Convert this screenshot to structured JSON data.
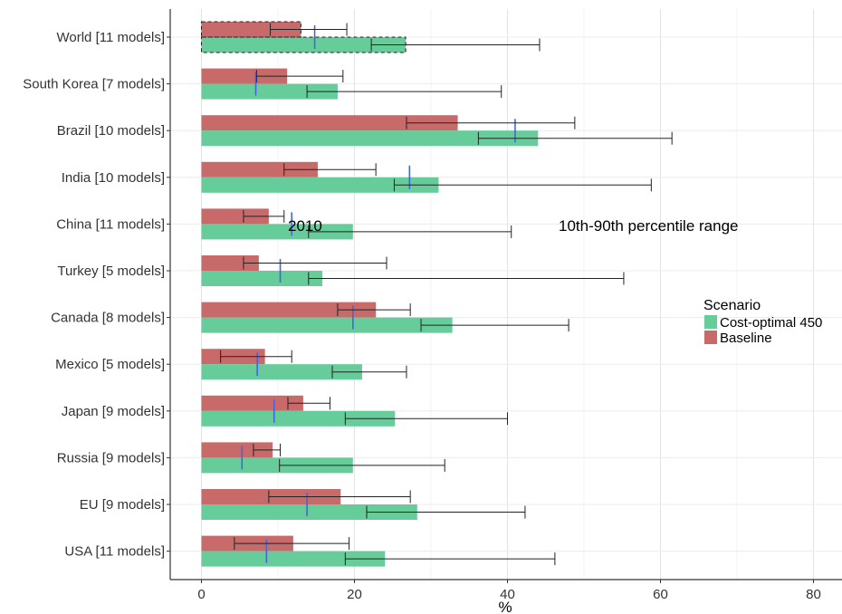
{
  "chart_data": {
    "type": "bar",
    "orientation": "horizontal",
    "categories": [
      "World [11 models]",
      "South Korea [7 models]",
      "Brazil [10 models]",
      "India [10 models]",
      "China [11 models]",
      "Turkey [5 models]",
      "Canada [8 models]",
      "Mexico [5 models]",
      "Japan [9 models]",
      "Russia [9 models]",
      "EU [9 models]",
      "USA [11 models]"
    ],
    "series": [
      {
        "name": "Baseline",
        "color": "#c96a6a",
        "values": [
          13,
          11.2,
          33.5,
          15.2,
          8.8,
          7.5,
          22.8,
          8.3,
          13.3,
          9.3,
          18.2,
          12
        ],
        "err_low": [
          9,
          7.2,
          26.8,
          10.8,
          5.5,
          5.5,
          17.8,
          2.5,
          11.3,
          6.8,
          8.8,
          4.3
        ],
        "err_high": [
          19,
          18.5,
          48.8,
          22.8,
          10.8,
          24.2,
          27.3,
          11.8,
          16.8,
          10.3,
          27.3,
          19.3
        ]
      },
      {
        "name": "Cost-optimal 450",
        "color": "#66cc99",
        "values": [
          26.7,
          17.8,
          44,
          31,
          19.8,
          15.8,
          32.8,
          21,
          25.3,
          19.8,
          28.2,
          24
        ],
        "err_low": [
          22.2,
          13.8,
          36.2,
          25.2,
          14,
          14,
          28.7,
          17.1,
          18.8,
          10.2,
          21.6,
          18.8
        ],
        "err_high": [
          44.2,
          39.2,
          61.5,
          58.8,
          40.5,
          55.2,
          48,
          26.8,
          40,
          31.8,
          42.3,
          46.2
        ]
      }
    ],
    "reference_2010": [
      14.8,
      7.1,
      41,
      27.2,
      11.8,
      10.3,
      19.8,
      7.3,
      9.5,
      5.3,
      13.8,
      8.5
    ],
    "reference_color": "#4466dd",
    "highlighted_category": "World [11 models]",
    "xlabel": "%",
    "ylabel": "",
    "xlim": [
      -4,
      84
    ],
    "xticks": [
      0,
      20,
      40,
      60,
      80
    ],
    "grid": true,
    "legend": {
      "title": "Scenario",
      "position": "right",
      "entries": [
        "Cost-optimal 450",
        "Baseline"
      ]
    },
    "annotations": [
      "2010",
      "10th-90th percentile range"
    ]
  }
}
